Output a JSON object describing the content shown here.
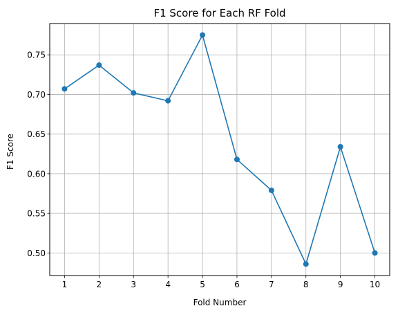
{
  "chart_data": {
    "type": "line",
    "title": "F1 Score for Each RF Fold",
    "xlabel": "Fold Number",
    "ylabel": "F1 Score",
    "x": [
      1,
      2,
      3,
      4,
      5,
      6,
      7,
      8,
      9,
      10
    ],
    "series": [
      {
        "values": [
          0.707,
          0.737,
          0.702,
          0.692,
          0.775,
          0.618,
          0.579,
          0.486,
          0.634,
          0.5
        ]
      }
    ],
    "xlim": [
      0.57,
      10.43
    ],
    "ylim": [
      0.4715,
      0.7895
    ],
    "xticks": [
      1,
      2,
      3,
      4,
      5,
      6,
      7,
      8,
      9,
      10
    ],
    "yticks": [
      0.5,
      0.55,
      0.6,
      0.65,
      0.7,
      0.75
    ],
    "ytick_labels": [
      "0.50",
      "0.55",
      "0.60",
      "0.65",
      "0.70",
      "0.75"
    ],
    "grid": true,
    "markers": "circle",
    "colors": {
      "line": "#1f77b4",
      "grid": "#b0b0b0"
    }
  }
}
